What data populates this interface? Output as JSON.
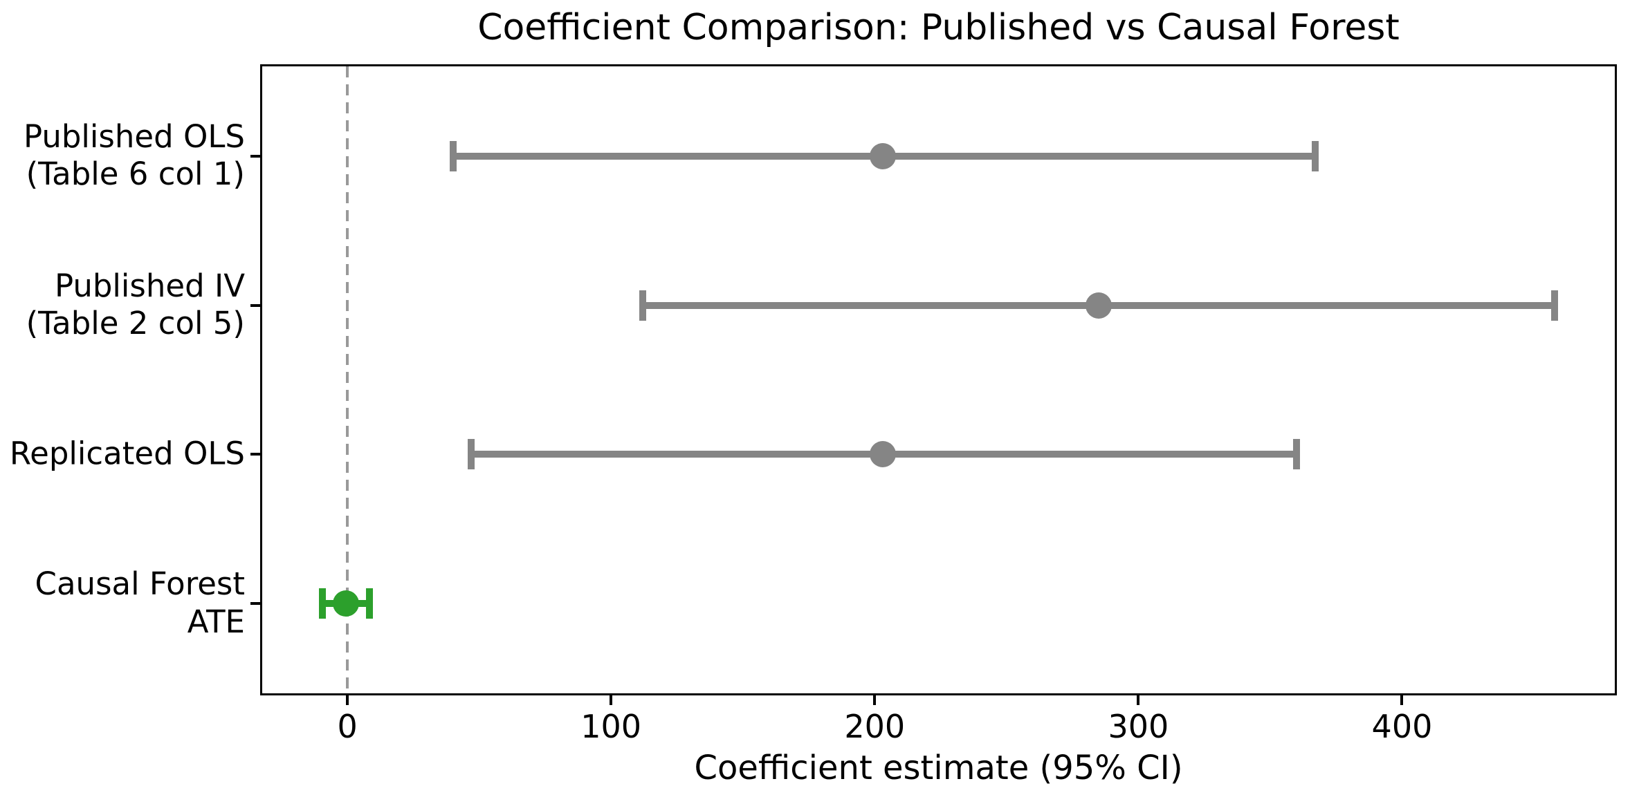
{
  "title": "Coefficient Comparison: Published vs Causal Forest",
  "xlabel": "Coefficient estimate (95% CI)",
  "chart_data": {
    "type": "errorbar",
    "title": "Coefficient Comparison: Published vs Causal Forest",
    "xlabel": "Coefficient estimate (95% CI)",
    "ylabel": "",
    "grid": false,
    "legend": "none",
    "xlim": [
      -32.3,
      480.7
    ],
    "ylim": [
      -0.6,
      3.6
    ],
    "xticks": [
      0,
      100,
      200,
      300,
      400
    ],
    "refline_x": 0,
    "rows": [
      {
        "label_lines": [
          "Published OLS",
          "(Table 6 col 1)"
        ],
        "y": 3,
        "estimate": 203,
        "ci_low": 40,
        "ci_high": 367,
        "color": "#858585"
      },
      {
        "label_lines": [
          "Published IV",
          "(Table 2 col 5)"
        ],
        "y": 2,
        "estimate": 285,
        "ci_low": 112,
        "ci_high": 458,
        "color": "#858585"
      },
      {
        "label_lines": [
          "Replicated OLS"
        ],
        "y": 1,
        "estimate": 203,
        "ci_low": 47,
        "ci_high": 360,
        "color": "#858585"
      },
      {
        "label_lines": [
          "Causal Forest",
          "ATE"
        ],
        "y": 0,
        "estimate": -0.5,
        "ci_low": -9.5,
        "ci_high": 8.5,
        "color": "#2ca02c"
      }
    ],
    "colors": {
      "gray_series": "#858585",
      "green_series": "#2ca02c",
      "refline": "#999999",
      "spine": "#000000",
      "text": "#000000"
    }
  }
}
